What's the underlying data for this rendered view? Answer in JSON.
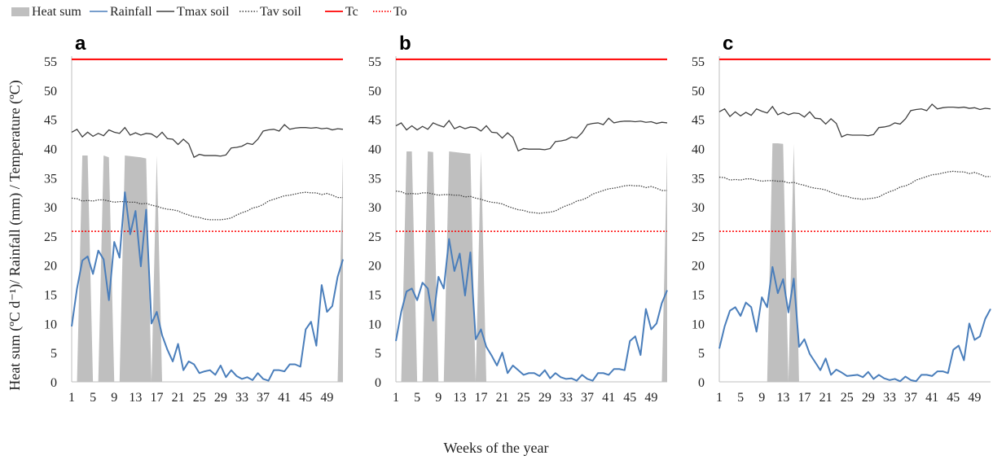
{
  "legend": [
    {
      "label": "Heat sum",
      "kind": "area",
      "color": "#bfbfbf",
      "icon": "grey-box-icon"
    },
    {
      "label": "Rainfall",
      "kind": "line",
      "color": "#4a7ebb",
      "icon": "blue-line-icon"
    },
    {
      "label": "Tmax soil",
      "kind": "line",
      "color": "#404040",
      "icon": "dark-line-icon"
    },
    {
      "label": "Tav soil",
      "kind": "dotted",
      "color": "#404040",
      "icon": "dotted-line-icon"
    },
    {
      "label": "Tc",
      "kind": "line",
      "color": "#ff0000",
      "icon": "red-line-icon"
    },
    {
      "label": "To",
      "kind": "dotted",
      "color": "#ff0000",
      "icon": "red-dotted-line-icon"
    }
  ],
  "ylabel": "Heat sum (ºC d⁻¹)/ Rainfall  (mm) / Temperature  (ºC)",
  "xlabel": "Weeks of the year",
  "chart_data": [
    {
      "type": "line",
      "panel": "a",
      "xlim": [
        1,
        52
      ],
      "ylim": [
        0,
        55
      ],
      "xticks": [
        1,
        5,
        9,
        13,
        17,
        21,
        25,
        29,
        33,
        37,
        41,
        45,
        49
      ],
      "yticks": [
        0,
        5,
        10,
        15,
        20,
        25,
        30,
        35,
        40,
        45,
        50,
        55
      ],
      "Tc": 55.3,
      "To": 25.8,
      "heat_sum": [
        0,
        0,
        38.8,
        38.8,
        0,
        0,
        38.8,
        38.5,
        0,
        0,
        38.8,
        38.7,
        38.6,
        38.5,
        38.3,
        0,
        38.8,
        0,
        0,
        0,
        0,
        0,
        0,
        0,
        0,
        0,
        0,
        0,
        0,
        0,
        0,
        0,
        0,
        0,
        0,
        0,
        0,
        0,
        0,
        0,
        0,
        0,
        0,
        0,
        0,
        0,
        0,
        0,
        0,
        0,
        0,
        38.6
      ],
      "rainfall": [
        9.5,
        16,
        20.8,
        21.5,
        18.5,
        22.5,
        21,
        14,
        24,
        21.3,
        32.5,
        25.3,
        29.3,
        19.8,
        29.5,
        10,
        12,
        8,
        5.5,
        3.5,
        6.5,
        2,
        3.5,
        3,
        1.5,
        1.8,
        2,
        1.2,
        2.8,
        0.8,
        2,
        1,
        0.5,
        0.8,
        0.3,
        1.5,
        0.5,
        0.2,
        2,
        2,
        1.8,
        3,
        3,
        2.6,
        9,
        10.3,
        6.2,
        16.6,
        12,
        13,
        18,
        21
      ],
      "tmax_soil": [
        42.8,
        43.3,
        42,
        42.8,
        42.1,
        42.6,
        42.2,
        43.2,
        42.8,
        42.6,
        43.6,
        42.3,
        42.7,
        42.3,
        42.6,
        42.5,
        41.9,
        42.8,
        41.7,
        41.6,
        40.7,
        41.6,
        40.8,
        38.5,
        39,
        38.8,
        38.8,
        38.8,
        38.7,
        38.9,
        40.1,
        40.2,
        40.4,
        40.9,
        40.7,
        41.6,
        43,
        43.2,
        43.3,
        43,
        44.1,
        43.3,
        43.5,
        43.6,
        43.6,
        43.5,
        43.6,
        43.4,
        43.5,
        43.2,
        43.4,
        43.3
      ],
      "tav_soil": [
        31.5,
        31.4,
        31,
        31.1,
        31,
        31.2,
        31.2,
        31,
        30.8,
        30.9,
        30.9,
        30.8,
        30.8,
        30.5,
        30.6,
        30.3,
        30.1,
        29.8,
        29.6,
        29.5,
        29.3,
        28.9,
        28.6,
        28.3,
        28.2,
        27.9,
        27.8,
        27.8,
        27.8,
        27.9,
        28.1,
        28.6,
        29,
        29.3,
        29.8,
        30,
        30.4,
        31,
        31.3,
        31.6,
        31.9,
        32,
        32.2,
        32.4,
        32.5,
        32.4,
        32.4,
        32.1,
        32.3,
        32,
        31.6,
        31.6
      ]
    },
    {
      "type": "line",
      "panel": "b",
      "xlim": [
        1,
        52
      ],
      "ylim": [
        0,
        55
      ],
      "xticks": [
        1,
        5,
        9,
        13,
        17,
        21,
        25,
        29,
        33,
        37,
        41,
        45,
        49
      ],
      "yticks": [
        0,
        5,
        10,
        15,
        20,
        25,
        30,
        35,
        40,
        45,
        50,
        55
      ],
      "Tc": 55.3,
      "To": 25.8,
      "heat_sum": [
        0,
        0,
        39.5,
        39.5,
        0,
        0,
        39.5,
        39.4,
        0,
        0,
        39.5,
        39.4,
        39.3,
        39.2,
        39.1,
        0,
        39.5,
        0,
        0,
        0,
        0,
        0,
        0,
        0,
        0,
        0,
        0,
        0,
        0,
        0,
        0,
        0,
        0,
        0,
        0,
        0,
        0,
        0,
        0,
        0,
        0,
        0,
        0,
        0,
        0,
        0,
        0,
        0,
        0,
        0,
        0,
        39.4
      ],
      "rainfall": [
        7,
        12,
        15.5,
        16,
        14,
        17,
        16,
        10.5,
        18,
        16,
        24.5,
        19,
        22,
        14.8,
        22.2,
        7.3,
        9,
        6,
        4.5,
        2.8,
        5,
        1.5,
        2.8,
        2,
        1.2,
        1.5,
        1.5,
        1,
        2,
        0.6,
        1.5,
        0.8,
        0.5,
        0.6,
        0.2,
        1.2,
        0.5,
        0.2,
        1.5,
        1.5,
        1.2,
        2.2,
        2.2,
        2,
        7,
        7.8,
        4.6,
        12.5,
        9,
        10,
        13.5,
        15.7
      ],
      "tmax_soil": [
        43.9,
        44.4,
        43.2,
        43.9,
        43.2,
        43.8,
        43.3,
        44.4,
        44,
        43.7,
        44.8,
        43.4,
        43.8,
        43.4,
        43.7,
        43.6,
        43,
        43.9,
        42.8,
        42.7,
        41.8,
        42.7,
        41.9,
        39.6,
        40,
        39.9,
        39.9,
        39.9,
        39.8,
        40,
        41.2,
        41.3,
        41.5,
        42,
        41.8,
        42.7,
        44.1,
        44.3,
        44.4,
        44.1,
        45.2,
        44.4,
        44.6,
        44.7,
        44.7,
        44.6,
        44.7,
        44.5,
        44.6,
        44.3,
        44.5,
        44.4
      ],
      "tav_soil": [
        32.7,
        32.6,
        32.2,
        32.3,
        32.2,
        32.4,
        32.4,
        32.2,
        32,
        32.1,
        32.1,
        32,
        32,
        31.7,
        31.8,
        31.5,
        31.3,
        31,
        30.8,
        30.7,
        30.5,
        30.1,
        29.8,
        29.5,
        29.4,
        29.1,
        29,
        28.9,
        29,
        29.1,
        29.3,
        29.8,
        30.2,
        30.5,
        31,
        31.2,
        31.6,
        32.2,
        32.5,
        32.8,
        33.1,
        33.2,
        33.4,
        33.6,
        33.7,
        33.6,
        33.6,
        33.3,
        33.5,
        33.2,
        32.8,
        32.8
      ]
    },
    {
      "type": "line",
      "panel": "c",
      "xlim": [
        1,
        52
      ],
      "ylim": [
        0,
        55
      ],
      "xticks": [
        1,
        5,
        9,
        13,
        17,
        21,
        25,
        29,
        33,
        37,
        41,
        45,
        49
      ],
      "yticks": [
        0,
        5,
        10,
        15,
        20,
        25,
        30,
        35,
        40,
        45,
        50,
        55
      ],
      "Tc": 55.3,
      "To": 25.8,
      "heat_sum": [
        0,
        0,
        0,
        0,
        0,
        0,
        0,
        0,
        0,
        0,
        40.9,
        40.9,
        40.8,
        0,
        40.8,
        0,
        0,
        0,
        0,
        0,
        0,
        0,
        0,
        0,
        0,
        0,
        0,
        0,
        0,
        0,
        0,
        0,
        0,
        0,
        0,
        0,
        0,
        0,
        0,
        0,
        0,
        0,
        0,
        0,
        0,
        0,
        0,
        0,
        0,
        0,
        0,
        0
      ],
      "rainfall": [
        5.7,
        9.5,
        12.2,
        12.8,
        11.3,
        13.6,
        12.8,
        8.6,
        14.5,
        12.8,
        19.7,
        15.2,
        17.6,
        11.9,
        17.7,
        6,
        7.3,
        4.8,
        3.4,
        2,
        4,
        1.2,
        2.1,
        1.6,
        1,
        1.1,
        1.2,
        0.8,
        1.7,
        0.5,
        1.2,
        0.6,
        0.3,
        0.5,
        0.1,
        0.9,
        0.3,
        0.1,
        1.2,
        1.2,
        1,
        1.8,
        1.8,
        1.5,
        5.5,
        6.2,
        3.7,
        10,
        7.2,
        7.8,
        10.8,
        12.5
      ],
      "tmax_soil": [
        46.3,
        46.8,
        45.5,
        46.3,
        45.6,
        46.2,
        45.7,
        46.8,
        46.4,
        46.1,
        47.2,
        45.8,
        46.2,
        45.8,
        46.1,
        46,
        45.4,
        46.3,
        45.2,
        45.1,
        44.2,
        45.1,
        44.3,
        42,
        42.4,
        42.3,
        42.3,
        42.3,
        42.2,
        42.4,
        43.6,
        43.7,
        43.9,
        44.4,
        44.2,
        45.1,
        46.5,
        46.7,
        46.8,
        46.5,
        47.6,
        46.8,
        47,
        47.1,
        47.1,
        47,
        47.1,
        46.9,
        47,
        46.7,
        46.9,
        46.8
      ],
      "tav_soil": [
        35.1,
        35,
        34.6,
        34.7,
        34.6,
        34.8,
        34.8,
        34.6,
        34.4,
        34.5,
        34.5,
        34.4,
        34.4,
        34.1,
        34.2,
        33.9,
        33.7,
        33.4,
        33.2,
        33.1,
        32.9,
        32.5,
        32.2,
        31.9,
        31.8,
        31.5,
        31.4,
        31.3,
        31.4,
        31.5,
        31.7,
        32.2,
        32.6,
        32.9,
        33.4,
        33.6,
        34,
        34.6,
        34.9,
        35.2,
        35.5,
        35.6,
        35.8,
        36,
        36.1,
        36,
        36,
        35.7,
        35.9,
        35.6,
        35.2,
        35.2
      ]
    }
  ]
}
